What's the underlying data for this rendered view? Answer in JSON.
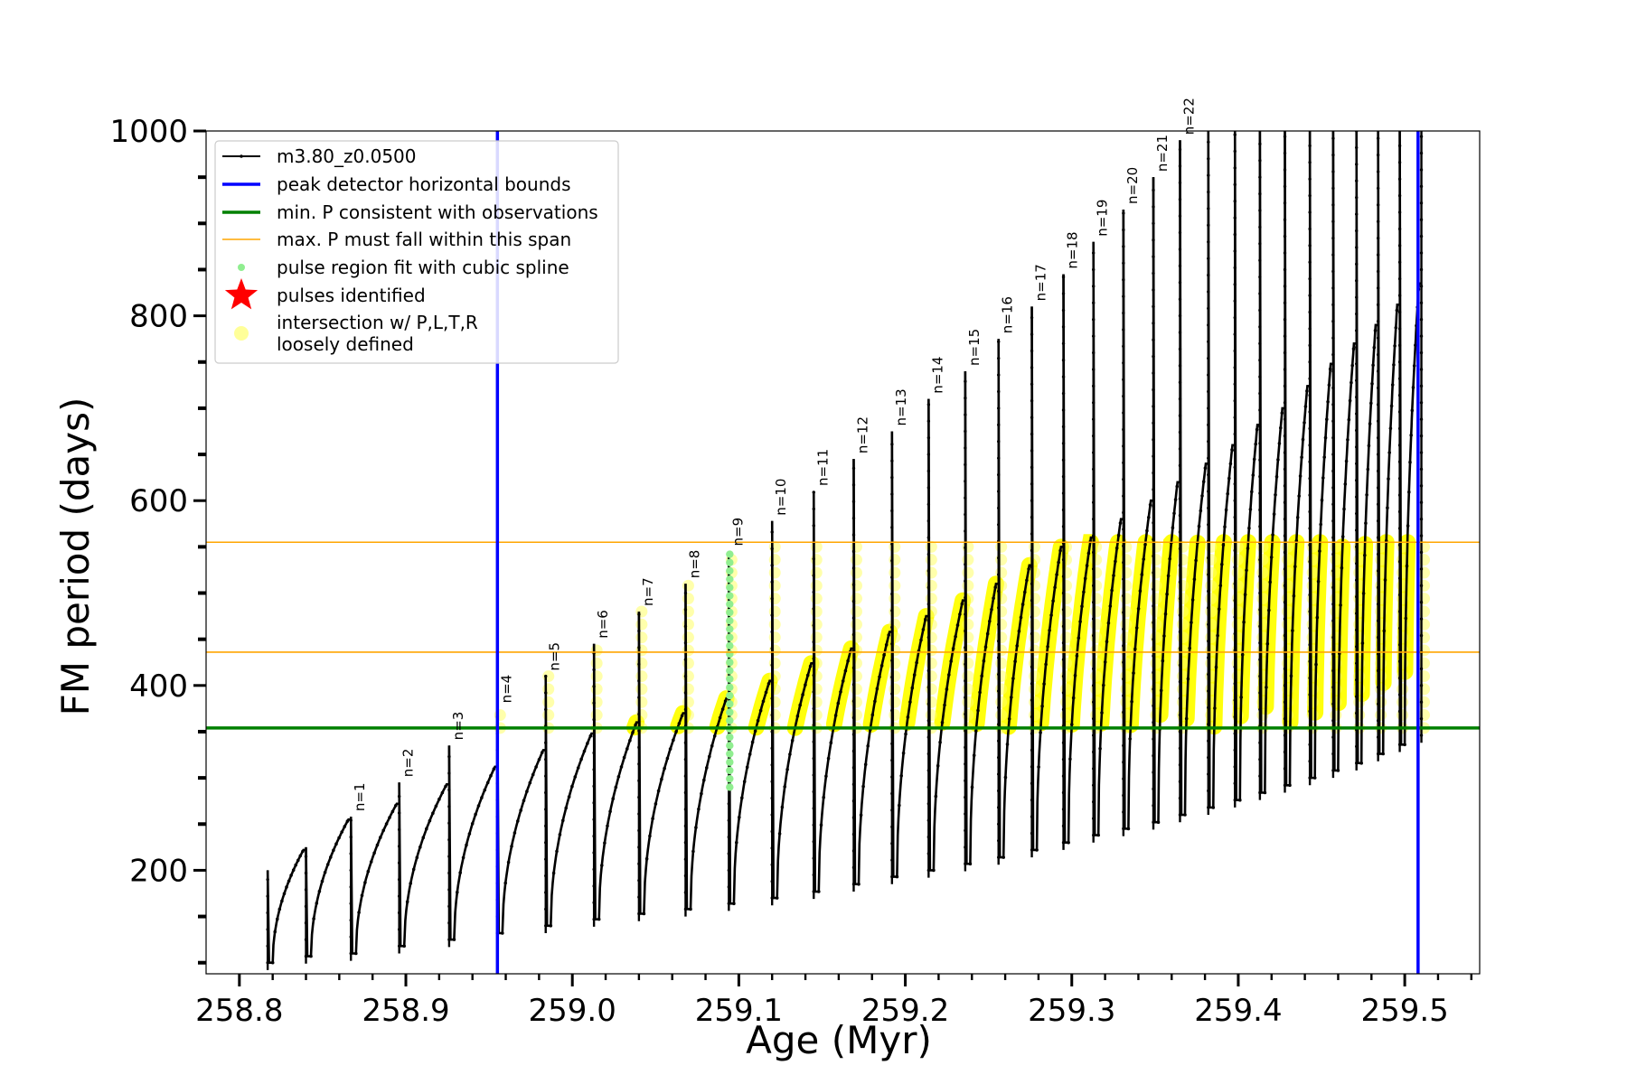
{
  "chart_data": {
    "type": "line",
    "title": "",
    "xlabel": "Age (Myr)",
    "ylabel": "FM period (days)",
    "xlim": [
      258.78,
      259.545
    ],
    "ylim": [
      88,
      1000
    ],
    "xticks": [
      258.8,
      258.9,
      259.0,
      259.1,
      259.2,
      259.3,
      259.4,
      259.5
    ],
    "xtick_labels": [
      "258.8",
      "258.9",
      "259.0",
      "259.1",
      "259.2",
      "259.3",
      "259.4",
      "259.5"
    ],
    "yticks": [
      200,
      400,
      600,
      800,
      1000
    ],
    "ytick_labels": [
      "200",
      "400",
      "600",
      "800",
      "1000"
    ],
    "grid": false,
    "legend_position": "top-left",
    "legend": [
      {
        "label": "m3.80_z0.0500",
        "kind": "line-marker",
        "color": "#000000"
      },
      {
        "label": "peak detector horizontal bounds",
        "kind": "line",
        "color": "#0000ff"
      },
      {
        "label": "min. P consistent with observations",
        "kind": "line",
        "color": "#008000"
      },
      {
        "label": "max. P must fall within this span",
        "kind": "thin-line",
        "color": "#ffa500"
      },
      {
        "label": "pulse region fit with cubic spline",
        "kind": "dot",
        "color": "#90ee90"
      },
      {
        "label": "pulses identified",
        "kind": "star",
        "color": "#ff0000"
      },
      {
        "label": "intersection w/ P,L,T,R",
        "label2": "loosely defined",
        "kind": "circle",
        "color": "#ffff99"
      }
    ],
    "vertical_lines": {
      "color": "#0000ff",
      "x": [
        258.955,
        259.508
      ]
    },
    "min_period_line": {
      "color": "#008000",
      "y": 354
    },
    "max_period_span": {
      "color": "#ffa500",
      "y": [
        436,
        555
      ]
    },
    "pulse_labels": [
      "n=1",
      "n=2",
      "n=3",
      "n=4",
      "n=5",
      "n=6",
      "n=7",
      "n=8",
      "n=9",
      "n=10",
      "n=11",
      "n=12",
      "n=13",
      "n=14",
      "n=15",
      "n=16",
      "n=17",
      "n=18",
      "n=19",
      "n=20",
      "n=21",
      "n=22"
    ],
    "series": [
      {
        "name": "m3.80_z0.0500",
        "color": "#000000",
        "pulse_ages": [
          258.817,
          258.84,
          258.867,
          258.896,
          258.926,
          258.955,
          258.984,
          259.013,
          259.04,
          259.068,
          259.094,
          259.12,
          259.145,
          259.169,
          259.192,
          259.214,
          259.236,
          259.256,
          259.276,
          259.295,
          259.313,
          259.331,
          259.349,
          259.365,
          259.382,
          259.398,
          259.413,
          259.428,
          259.443,
          259.457,
          259.471,
          259.484,
          259.497,
          259.51
        ],
        "cycle_min_period": [
          100,
          107,
          110,
          118,
          125,
          132,
          140,
          147,
          153,
          158,
          164,
          170,
          177,
          185,
          193,
          200,
          207,
          214,
          222,
          230,
          238,
          245,
          252,
          260,
          268,
          276,
          284,
          292,
          300,
          308,
          316,
          326,
          336,
          346
        ],
        "cycle_peak_period": [
          222,
          255,
          272,
          293,
          312,
          330,
          348,
          360,
          370,
          386,
          405,
          424,
          440,
          458,
          475,
          492,
          510,
          530,
          550,
          560,
          580,
          600,
          620,
          640,
          660,
          682,
          700,
          724,
          748,
          770,
          790,
          812,
          835,
          858
        ],
        "spike_period": [
          200,
          225,
          258,
          295,
          335,
          375,
          410,
          445,
          480,
          510,
          545,
          578,
          610,
          645,
          675,
          710,
          740,
          775,
          810,
          845,
          880,
          915,
          950,
          990,
          1000,
          1000,
          1000,
          1000,
          1000,
          1000,
          1000,
          1000,
          1000,
          1000
        ]
      }
    ]
  }
}
